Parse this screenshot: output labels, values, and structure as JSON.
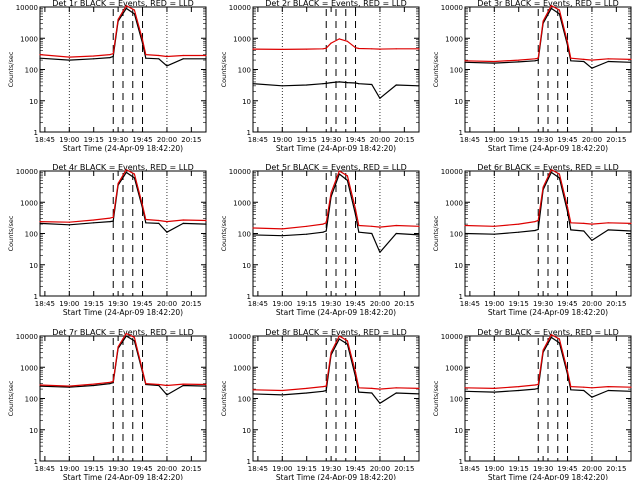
{
  "colors": {
    "events": "#000000",
    "lld": "#dd0000",
    "axis": "#000000",
    "background": "#ffffff"
  },
  "common": {
    "xlabel": "Start Time (24-Apr-09 18:42:20)",
    "ylabel": "Counts/sec",
    "x_tick_labels": [
      "18:45",
      "19:00",
      "19:15",
      "19:30",
      "19:45",
      "20:00",
      "20:15"
    ],
    "y_tick_labels": [
      "1",
      "10",
      "100",
      "1000",
      "10000"
    ],
    "dotted_gridlines_at": [
      "19:00",
      "20:00"
    ],
    "dashed_markers_at": [
      "19:27",
      "19:33",
      "19:39",
      "19:45"
    ]
  },
  "chart_data": [
    {
      "type": "line",
      "title": "Det 1r BLACK = Events, RED = LLD",
      "yscale": "log",
      "ylim": [
        1,
        10000
      ],
      "xlim": [
        "18:42",
        "20:24"
      ],
      "series": [
        {
          "name": "Events",
          "color": "#000000",
          "x": [
            "18:42",
            "19:00",
            "19:15",
            "19:25",
            "19:27",
            "19:30",
            "19:35",
            "19:40",
            "19:45",
            "19:47",
            "19:55",
            "20:00",
            "20:10",
            "20:24"
          ],
          "y": [
            230,
            200,
            220,
            240,
            260,
            3500,
            9000,
            6000,
            700,
            230,
            220,
            130,
            220,
            220
          ]
        },
        {
          "name": "LLD",
          "color": "#dd0000",
          "x": [
            "18:42",
            "19:00",
            "19:15",
            "19:25",
            "19:27",
            "19:30",
            "19:35",
            "19:40",
            "19:45",
            "19:47",
            "19:55",
            "20:00",
            "20:10",
            "20:24"
          ],
          "y": [
            300,
            250,
            270,
            300,
            320,
            4000,
            11000,
            8000,
            900,
            300,
            280,
            260,
            280,
            280
          ]
        }
      ]
    },
    {
      "type": "line",
      "title": "Det 2r BLACK = Events, RED = LLD",
      "yscale": "log",
      "ylim": [
        1,
        10000
      ],
      "xlim": [
        "18:42",
        "20:24"
      ],
      "series": [
        {
          "name": "Events",
          "color": "#000000",
          "x": [
            "18:42",
            "19:00",
            "19:15",
            "19:25",
            "19:27",
            "19:30",
            "19:35",
            "19:40",
            "19:45",
            "19:47",
            "19:55",
            "20:00",
            "20:10",
            "20:24"
          ],
          "y": [
            35,
            30,
            32,
            35,
            36,
            38,
            40,
            38,
            37,
            35,
            33,
            12,
            32,
            30
          ]
        },
        {
          "name": "LLD",
          "color": "#dd0000",
          "x": [
            "18:42",
            "19:00",
            "19:15",
            "19:25",
            "19:27",
            "19:30",
            "19:35",
            "19:40",
            "19:45",
            "19:47",
            "19:55",
            "20:00",
            "20:10",
            "20:24"
          ],
          "y": [
            450,
            440,
            450,
            460,
            480,
            700,
            950,
            800,
            500,
            470,
            460,
            450,
            460,
            460
          ]
        }
      ]
    },
    {
      "type": "line",
      "title": "Det 3r BLACK = Events, RED = LLD",
      "yscale": "log",
      "ylim": [
        1,
        10000
      ],
      "xlim": [
        "18:42",
        "20:24"
      ],
      "series": [
        {
          "name": "Events",
          "color": "#000000",
          "x": [
            "18:42",
            "19:00",
            "19:15",
            "19:25",
            "19:27",
            "19:30",
            "19:35",
            "19:40",
            "19:45",
            "19:47",
            "19:55",
            "20:00",
            "20:10",
            "20:24"
          ],
          "y": [
            170,
            160,
            175,
            190,
            200,
            3000,
            9000,
            6000,
            600,
            190,
            180,
            110,
            180,
            170
          ]
        },
        {
          "name": "LLD",
          "color": "#dd0000",
          "x": [
            "18:42",
            "19:00",
            "19:15",
            "19:25",
            "19:27",
            "19:30",
            "19:35",
            "19:40",
            "19:45",
            "19:47",
            "19:55",
            "20:00",
            "20:10",
            "20:24"
          ],
          "y": [
            190,
            180,
            200,
            220,
            230,
            3500,
            11000,
            8000,
            750,
            230,
            210,
            200,
            220,
            210
          ]
        }
      ]
    },
    {
      "type": "line",
      "title": "Det 4r BLACK = Events, RED = LLD",
      "yscale": "log",
      "ylim": [
        1,
        10000
      ],
      "xlim": [
        "18:42",
        "20:24"
      ],
      "series": [
        {
          "name": "Events",
          "color": "#000000",
          "x": [
            "18:42",
            "19:00",
            "19:15",
            "19:25",
            "19:27",
            "19:30",
            "19:35",
            "19:40",
            "19:45",
            "19:47",
            "19:55",
            "20:00",
            "20:10",
            "20:24"
          ],
          "y": [
            210,
            190,
            220,
            240,
            250,
            3500,
            9000,
            6000,
            650,
            220,
            210,
            110,
            210,
            200
          ]
        },
        {
          "name": "LLD",
          "color": "#dd0000",
          "x": [
            "18:42",
            "19:00",
            "19:15",
            "19:25",
            "19:27",
            "19:30",
            "19:35",
            "19:40",
            "19:45",
            "19:47",
            "19:55",
            "20:00",
            "20:10",
            "20:24"
          ],
          "y": [
            240,
            230,
            270,
            310,
            330,
            4000,
            11000,
            8000,
            800,
            280,
            260,
            240,
            270,
            260
          ]
        }
      ]
    },
    {
      "type": "line",
      "title": "Det 5r BLACK = Events, RED = LLD",
      "yscale": "log",
      "ylim": [
        1,
        10000
      ],
      "xlim": [
        "18:42",
        "20:24"
      ],
      "series": [
        {
          "name": "Events",
          "color": "#000000",
          "x": [
            "18:42",
            "19:00",
            "19:15",
            "19:25",
            "19:27",
            "19:30",
            "19:35",
            "19:40",
            "19:45",
            "19:47",
            "19:55",
            "20:00",
            "20:10",
            "20:24"
          ],
          "y": [
            90,
            85,
            95,
            110,
            120,
            1500,
            8000,
            5000,
            400,
            110,
            100,
            25,
            100,
            90
          ]
        },
        {
          "name": "LLD",
          "color": "#dd0000",
          "x": [
            "18:42",
            "19:00",
            "19:15",
            "19:25",
            "19:27",
            "19:30",
            "19:35",
            "19:40",
            "19:45",
            "19:47",
            "19:55",
            "20:00",
            "20:10",
            "20:24"
          ],
          "y": [
            150,
            140,
            170,
            200,
            220,
            2000,
            10000,
            7000,
            600,
            180,
            170,
            160,
            180,
            170
          ]
        }
      ]
    },
    {
      "type": "line",
      "title": "Det 6r BLACK = Events, RED = LLD",
      "yscale": "log",
      "ylim": [
        1,
        10000
      ],
      "xlim": [
        "18:42",
        "20:24"
      ],
      "series": [
        {
          "name": "Events",
          "color": "#000000",
          "x": [
            "18:42",
            "19:00",
            "19:15",
            "19:25",
            "19:27",
            "19:30",
            "19:35",
            "19:40",
            "19:45",
            "19:47",
            "19:55",
            "20:00",
            "20:10",
            "20:24"
          ],
          "y": [
            100,
            95,
            110,
            125,
            135,
            2500,
            9000,
            6000,
            500,
            130,
            120,
            60,
            130,
            120
          ]
        },
        {
          "name": "LLD",
          "color": "#dd0000",
          "x": [
            "18:42",
            "19:00",
            "19:15",
            "19:25",
            "19:27",
            "19:30",
            "19:35",
            "19:40",
            "19:45",
            "19:47",
            "19:55",
            "20:00",
            "20:10",
            "20:24"
          ],
          "y": [
            180,
            170,
            200,
            240,
            260,
            3000,
            11000,
            8000,
            700,
            220,
            210,
            200,
            220,
            210
          ]
        }
      ]
    },
    {
      "type": "line",
      "title": "Det 7r BLACK = Events, RED = LLD",
      "yscale": "log",
      "ylim": [
        1,
        10000
      ],
      "xlim": [
        "18:42",
        "20:24"
      ],
      "series": [
        {
          "name": "Events",
          "color": "#000000",
          "x": [
            "18:42",
            "19:00",
            "19:15",
            "19:25",
            "19:27",
            "19:30",
            "19:35",
            "19:40",
            "19:45",
            "19:47",
            "19:55",
            "20:00",
            "20:10",
            "20:24"
          ],
          "y": [
            250,
            230,
            260,
            300,
            320,
            4000,
            10000,
            7000,
            700,
            280,
            260,
            130,
            260,
            250
          ]
        },
        {
          "name": "LLD",
          "color": "#dd0000",
          "x": [
            "18:42",
            "19:00",
            "19:15",
            "19:25",
            "19:27",
            "19:30",
            "19:35",
            "19:40",
            "19:45",
            "19:47",
            "19:55",
            "20:00",
            "20:10",
            "20:24"
          ],
          "y": [
            270,
            250,
            290,
            330,
            350,
            4500,
            12000,
            9000,
            800,
            300,
            280,
            260,
            290,
            280
          ]
        }
      ]
    },
    {
      "type": "line",
      "title": "Det 8r BLACK = Events, RED = LLD",
      "yscale": "log",
      "ylim": [
        1,
        10000
      ],
      "xlim": [
        "18:42",
        "20:24"
      ],
      "series": [
        {
          "name": "Events",
          "color": "#000000",
          "x": [
            "18:42",
            "19:00",
            "19:15",
            "19:25",
            "19:27",
            "19:30",
            "19:35",
            "19:40",
            "19:45",
            "19:47",
            "19:55",
            "20:00",
            "20:10",
            "20:24"
          ],
          "y": [
            140,
            130,
            150,
            170,
            180,
            2500,
            8000,
            5500,
            500,
            160,
            150,
            70,
            150,
            140
          ]
        },
        {
          "name": "LLD",
          "color": "#dd0000",
          "x": [
            "18:42",
            "19:00",
            "19:15",
            "19:25",
            "19:27",
            "19:30",
            "19:35",
            "19:40",
            "19:45",
            "19:47",
            "19:55",
            "20:00",
            "20:10",
            "20:24"
          ],
          "y": [
            190,
            180,
            210,
            240,
            250,
            3000,
            10000,
            7000,
            700,
            220,
            210,
            200,
            220,
            210
          ]
        }
      ]
    },
    {
      "type": "line",
      "title": "Det 9r BLACK = Events, RED = LLD",
      "yscale": "log",
      "ylim": [
        1,
        10000
      ],
      "xlim": [
        "18:42",
        "20:24"
      ],
      "series": [
        {
          "name": "Events",
          "color": "#000000",
          "x": [
            "18:42",
            "19:00",
            "19:15",
            "19:25",
            "19:27",
            "19:30",
            "19:35",
            "19:40",
            "19:45",
            "19:47",
            "19:55",
            "20:00",
            "20:10",
            "20:24"
          ],
          "y": [
            170,
            160,
            180,
            200,
            210,
            3000,
            9000,
            6000,
            600,
            190,
            180,
            110,
            180,
            170
          ]
        },
        {
          "name": "LLD",
          "color": "#dd0000",
          "x": [
            "18:42",
            "19:00",
            "19:15",
            "19:25",
            "19:27",
            "19:30",
            "19:35",
            "19:40",
            "19:45",
            "19:47",
            "19:55",
            "20:00",
            "20:10",
            "20:24"
          ],
          "y": [
            220,
            210,
            240,
            270,
            280,
            3500,
            11000,
            8000,
            750,
            240,
            230,
            220,
            240,
            230
          ]
        }
      ]
    }
  ]
}
